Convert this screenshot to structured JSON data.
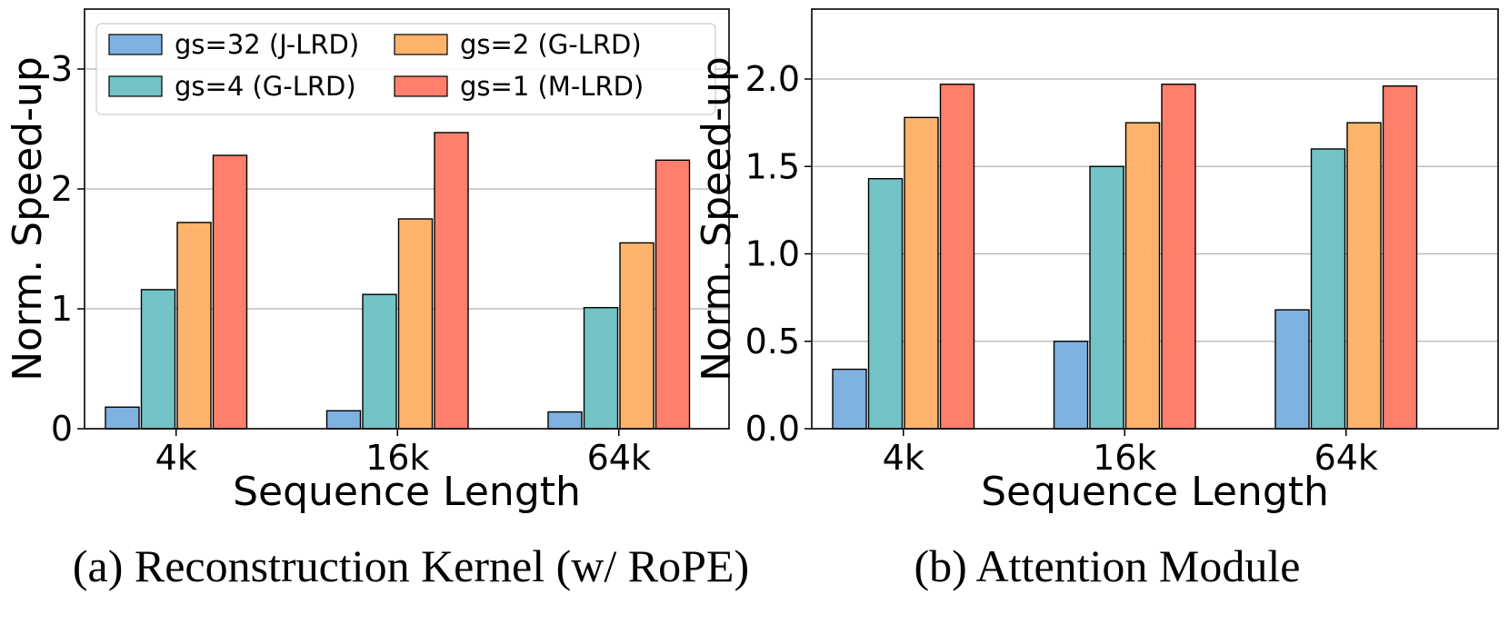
{
  "chart_data": [
    {
      "type": "bar",
      "caption": "(a) Reconstruction Kernel (w/ RoPE)",
      "xlabel": "Sequence Length",
      "ylabel": "Norm. Speed-up",
      "categories": [
        "4k",
        "16k",
        "64k"
      ],
      "ylim": [
        0,
        3.5
      ],
      "yticks": [
        "0",
        "1",
        "2",
        "3"
      ],
      "ytick_values": [
        0,
        1,
        2,
        3
      ],
      "grid": true,
      "legend_position": "upper-left",
      "series": [
        {
          "name": "gs=32 (J-LRD)",
          "color": "#7eb1e0",
          "values": [
            0.18,
            0.15,
            0.14
          ]
        },
        {
          "name": "gs=4 (G-LRD)",
          "color": "#72c3c5",
          "values": [
            1.16,
            1.12,
            1.01
          ]
        },
        {
          "name": "gs=2 (G-LRD)",
          "color": "#fdb36b",
          "values": [
            1.72,
            1.75,
            1.55
          ]
        },
        {
          "name": "gs=1 (M-LRD)",
          "color": "#fd7f6c",
          "values": [
            2.28,
            2.47,
            2.24
          ]
        }
      ]
    },
    {
      "type": "bar",
      "caption": "(b) Attention Module",
      "xlabel": "Sequence Length",
      "ylabel": "Norm. Speed-up",
      "categories": [
        "4k",
        "16k",
        "64k"
      ],
      "ylim": [
        0,
        2.4
      ],
      "yticks": [
        "0.0",
        "0.5",
        "1.0",
        "1.5",
        "2.0"
      ],
      "ytick_values": [
        0,
        0.5,
        1.0,
        1.5,
        2.0
      ],
      "grid": true,
      "series": [
        {
          "name": "gs=32 (J-LRD)",
          "color": "#7eb1e0",
          "values": [
            0.34,
            0.5,
            0.68
          ]
        },
        {
          "name": "gs=4 (G-LRD)",
          "color": "#72c3c5",
          "values": [
            1.43,
            1.5,
            1.6
          ]
        },
        {
          "name": "gs=2 (G-LRD)",
          "color": "#fdb36b",
          "values": [
            1.78,
            1.75,
            1.75
          ]
        },
        {
          "name": "gs=1 (M-LRD)",
          "color": "#fd7f6c",
          "values": [
            1.97,
            1.97,
            1.96
          ]
        }
      ]
    }
  ]
}
